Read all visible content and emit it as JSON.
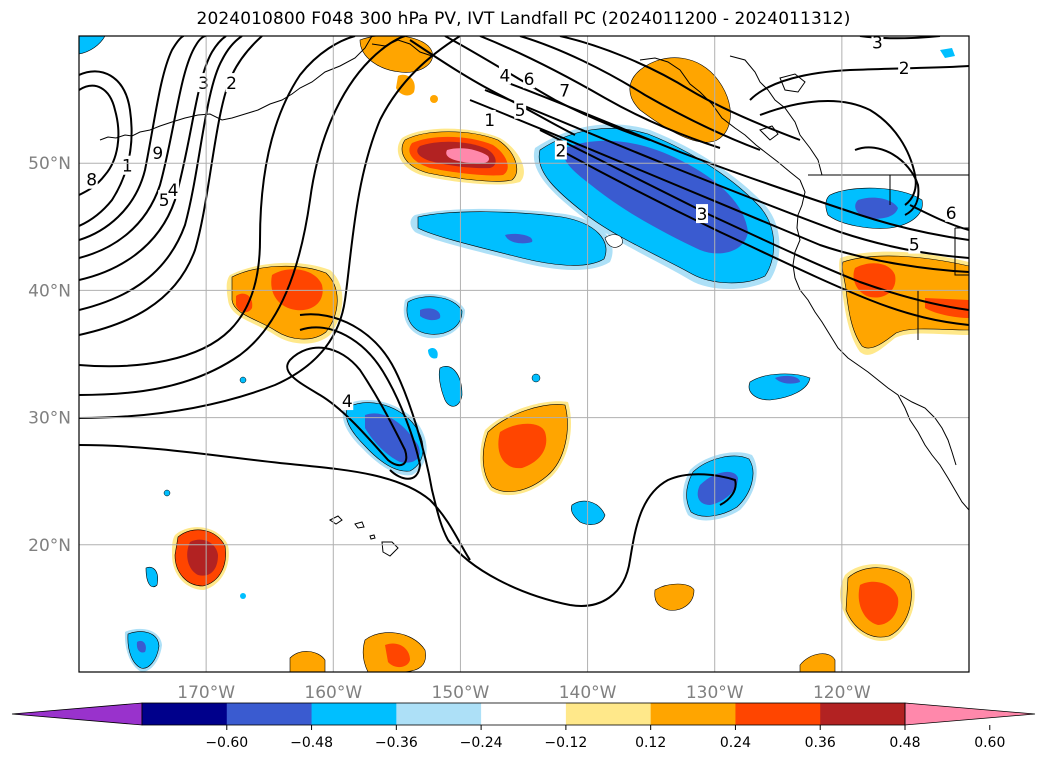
{
  "title": "2024010800 F048 300 hPa PV, IVT Landfall PC (2024011200 - 2024011312)",
  "axes": {
    "lon_range": [
      -180,
      -110
    ],
    "lat_range": [
      10,
      60
    ],
    "x_ticks": [
      {
        "lon": -170,
        "label": "170°W"
      },
      {
        "lon": -160,
        "label": "160°W"
      },
      {
        "lon": -150,
        "label": "150°W"
      },
      {
        "lon": -140,
        "label": "140°W"
      },
      {
        "lon": -130,
        "label": "130°W"
      },
      {
        "lon": -120,
        "label": "120°W"
      }
    ],
    "y_ticks": [
      {
        "lat": 50,
        "label": "50°N"
      },
      {
        "lat": 40,
        "label": "40°N"
      },
      {
        "lat": 30,
        "label": "30°N"
      },
      {
        "lat": 20,
        "label": "20°N"
      }
    ],
    "grid": true
  },
  "colorbar": {
    "extend": "both",
    "bins": [
      {
        "color": "#9932cc"
      },
      {
        "color": "#00008b"
      },
      {
        "color": "#3a5bd0"
      },
      {
        "color": "#00bfff"
      },
      {
        "color": "#ade0f7"
      },
      {
        "color": "#ffffff"
      },
      {
        "color": "#ffe88a"
      },
      {
        "color": "#ffa500"
      },
      {
        "color": "#ff4500"
      },
      {
        "color": "#b22222"
      },
      {
        "color": "#ff88ab"
      }
    ],
    "tick_labels": [
      "−0.60",
      "−0.48",
      "−0.36",
      "−0.24",
      "−0.12",
      "0.12",
      "0.24",
      "0.36",
      "0.48",
      "0.60"
    ]
  },
  "contour_labels": [
    {
      "text": "3",
      "lon": -170.2,
      "lat": 56.3
    },
    {
      "text": "2",
      "lon": -168.0,
      "lat": 56.3
    },
    {
      "text": "9",
      "lon": -173.8,
      "lat": 50.8
    },
    {
      "text": "1",
      "lon": -176.2,
      "lat": 49.8
    },
    {
      "text": "8",
      "lon": -179.0,
      "lat": 48.7
    },
    {
      "text": "5",
      "lon": -173.3,
      "lat": 47.1
    },
    {
      "text": "4",
      "lon": -172.6,
      "lat": 47.9
    },
    {
      "text": "4",
      "lon": -146.5,
      "lat": 56.9
    },
    {
      "text": "6",
      "lon": -144.6,
      "lat": 56.6
    },
    {
      "text": "7",
      "lon": -141.8,
      "lat": 55.7
    },
    {
      "text": "1",
      "lon": -147.7,
      "lat": 53.4
    },
    {
      "text": "5",
      "lon": -145.3,
      "lat": 54.2
    },
    {
      "text": "2",
      "lon": -142.1,
      "lat": 51.0
    },
    {
      "text": "3",
      "lon": -131.0,
      "lat": 46.0
    },
    {
      "text": "3",
      "lon": -117.2,
      "lat": 59.5
    },
    {
      "text": "2",
      "lon": -115.1,
      "lat": 57.5
    },
    {
      "text": "6",
      "lon": -111.4,
      "lat": 46.1
    },
    {
      "text": "5",
      "lon": -114.3,
      "lat": 43.6
    },
    {
      "text": "4",
      "lon": -158.9,
      "lat": 31.3
    }
  ]
}
